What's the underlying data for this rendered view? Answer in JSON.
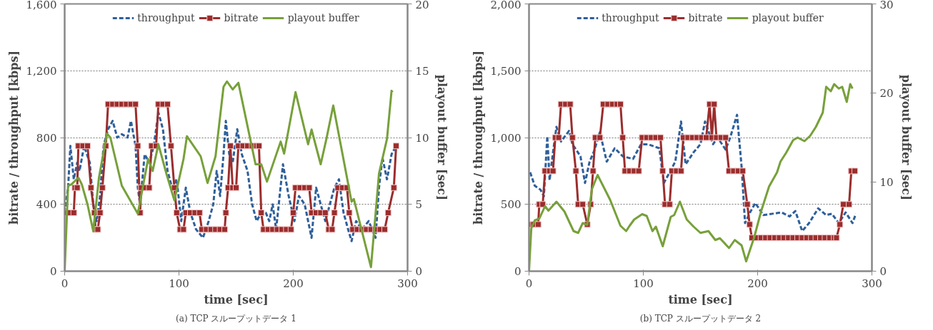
{
  "chart_data": [
    {
      "type": "line",
      "xlabel": "time [sec]",
      "ylabel": "bitrate / throughput [kbps]",
      "y2label": "playout buffer [sec]",
      "annotations": [
        "(a) TCP スループットデータ 1"
      ],
      "xlim": [
        0,
        300
      ],
      "xticks": [
        0,
        100,
        200,
        300
      ],
      "ylim": [
        0,
        1600
      ],
      "yticks": [
        0,
        400,
        800,
        {
          "value": 1200,
          "label": "1,200"
        },
        {
          "value": 1600,
          "label": "1,600"
        }
      ],
      "y2lim": [
        0,
        20
      ],
      "y2ticks": [
        0,
        5,
        10,
        15,
        20
      ],
      "grid": "y",
      "legend": "top",
      "series": [
        {
          "name": "throughput",
          "color": "#2e5f9a",
          "line_style": "dashed",
          "marker": "none",
          "x": [
            0,
            3,
            5,
            8,
            11,
            13,
            17,
            22,
            25,
            28,
            31,
            34,
            38,
            42,
            46,
            50,
            55,
            58,
            62,
            64,
            66,
            70,
            74,
            78,
            82,
            86,
            90,
            94,
            98,
            102,
            106,
            110,
            115,
            121,
            126,
            130,
            133,
            136,
            139,
            141,
            144,
            147,
            151,
            155,
            160,
            164,
            168,
            172,
            176,
            179,
            182,
            185,
            191,
            196,
            201,
            205,
            210,
            216,
            220,
            224,
            228,
            232,
            236,
            240,
            244,
            248,
            251,
            255,
            260,
            266,
            272,
            275,
            278,
            282,
            286,
            290
          ],
          "values": [
            350,
            500,
            750,
            550,
            650,
            600,
            750,
            650,
            400,
            300,
            450,
            750,
            850,
            900,
            800,
            820,
            800,
            900,
            750,
            500,
            400,
            700,
            650,
            750,
            950,
            850,
            600,
            500,
            550,
            300,
            500,
            350,
            250,
            200,
            300,
            400,
            600,
            450,
            700,
            900,
            700,
            650,
            850,
            700,
            600,
            400,
            300,
            350,
            350,
            300,
            400,
            250,
            640,
            450,
            300,
            450,
            400,
            200,
            500,
            400,
            300,
            400,
            500,
            550,
            350,
            250,
            180,
            300,
            250,
            300,
            200,
            500,
            680,
            550,
            700,
            750
          ]
        },
        {
          "name": "bitrate",
          "color": "#9b2d2d",
          "line_style": "solid",
          "marker": "square",
          "x": [
            0,
            4,
            8,
            9,
            11,
            12,
            16,
            20,
            23,
            26,
            27,
            29,
            31,
            33,
            36,
            38,
            42,
            46,
            50,
            54,
            58,
            62,
            64,
            66,
            67,
            71,
            74,
            76,
            80,
            82,
            86,
            90,
            93,
            96,
            98,
            101,
            104,
            106,
            110,
            114,
            118,
            120,
            124,
            128,
            132,
            136,
            140,
            141,
            143,
            145,
            147,
            150,
            152,
            156,
            160,
            164,
            168,
            170,
            172,
            174,
            178,
            182,
            186,
            190,
            194,
            198,
            200,
            202,
            206,
            210,
            214,
            216,
            220,
            224,
            228,
            231,
            234,
            236,
            239,
            243,
            247,
            249,
            252,
            256,
            260,
            264,
            268,
            272,
            276,
            280,
            283,
            288,
            290
          ],
          "values": [
            350,
            350,
            350,
            500,
            500,
            750,
            750,
            750,
            500,
            350,
            250,
            250,
            350,
            500,
            750,
            1000,
            1000,
            1000,
            1000,
            1000,
            1000,
            1000,
            750,
            350,
            500,
            500,
            500,
            750,
            750,
            1000,
            1000,
            1000,
            750,
            500,
            350,
            250,
            250,
            350,
            350,
            350,
            350,
            250,
            250,
            250,
            250,
            250,
            250,
            350,
            500,
            750,
            500,
            500,
            750,
            750,
            750,
            750,
            750,
            750,
            350,
            250,
            250,
            250,
            250,
            250,
            250,
            250,
            350,
            500,
            500,
            500,
            500,
            350,
            350,
            350,
            350,
            250,
            250,
            350,
            500,
            500,
            500,
            350,
            250,
            250,
            250,
            250,
            250,
            250,
            250,
            250,
            350,
            500,
            750
          ]
        },
        {
          "name": "playout buffer",
          "color": "#77a03a",
          "line_style": "solid",
          "marker": "none",
          "axis": "y2",
          "x": [
            0,
            3,
            6,
            12,
            15,
            20,
            25,
            30,
            37,
            40,
            50,
            64,
            73,
            77,
            82,
            89,
            96,
            104,
            107,
            119,
            125,
            132,
            139,
            142,
            147,
            152,
            167,
            172,
            177,
            189,
            192,
            202,
            213,
            216,
            224,
            229,
            235,
            251,
            253,
            268,
            275,
            282,
            286,
            287
          ],
          "values": [
            0,
            6.4,
            6.5,
            7,
            6.5,
            5,
            3,
            7,
            10.3,
            10,
            6.4,
            4.3,
            8.4,
            7.5,
            9.5,
            7.3,
            5.3,
            8.4,
            10.1,
            8.6,
            6.6,
            8.6,
            13.8,
            14.2,
            13.6,
            14.1,
            8,
            8,
            6.7,
            9.7,
            8.8,
            13.4,
            9.5,
            10.6,
            8,
            9.9,
            12.4,
            5.2,
            5.4,
            0.3,
            7.3,
            9.9,
            13.5,
            13.4
          ]
        }
      ]
    },
    {
      "type": "line",
      "xlabel": "time [sec]",
      "ylabel": "bitrate / throughput [kbps]",
      "y2label": "playout buffer [sec]",
      "annotations": [
        "(b) TCP スループットデータ 2"
      ],
      "xlim": [
        0,
        300
      ],
      "xticks": [
        0,
        100,
        200,
        300
      ],
      "ylim": [
        0,
        2000
      ],
      "yticks": [
        0,
        500,
        {
          "value": 1000,
          "label": "1,000"
        },
        {
          "value": 1500,
          "label": "1,500"
        },
        {
          "value": 2000,
          "label": "2,000"
        }
      ],
      "y2lim": [
        0,
        30
      ],
      "y2ticks": [
        0,
        10,
        20,
        30
      ],
      "grid": "y",
      "legend": "top",
      "series": [
        {
          "name": "throughput",
          "color": "#2e5f9a",
          "line_style": "dashed",
          "marker": "none",
          "x": [
            1,
            5,
            10,
            13,
            16,
            18,
            21,
            24,
            28,
            35,
            38,
            45,
            49,
            53,
            57,
            62,
            68,
            75,
            82,
            91,
            98,
            104,
            114,
            118,
            123,
            128,
            133,
            137,
            144,
            150,
            154,
            161,
            165,
            172,
            176,
            182,
            186,
            189,
            194,
            198,
            205,
            213,
            221,
            228,
            233,
            239,
            245,
            253,
            260,
            265,
            271,
            277,
            283,
            286
          ],
          "values": [
            740,
            640,
            610,
            560,
            1010,
            680,
            890,
            1080,
            970,
            1050,
            950,
            860,
            660,
            820,
            900,
            1040,
            820,
            920,
            860,
            840,
            950,
            950,
            920,
            660,
            740,
            820,
            1120,
            800,
            890,
            950,
            1120,
            950,
            1000,
            910,
            1000,
            1170,
            780,
            360,
            450,
            510,
            420,
            430,
            440,
            410,
            450,
            300,
            360,
            470,
            420,
            430,
            360,
            440,
            360,
            430
          ]
        },
        {
          "name": "bitrate",
          "color": "#9b2d2d",
          "line_style": "solid",
          "marker": "square",
          "x": [
            0,
            4,
            8,
            9,
            12,
            14,
            18,
            21,
            23,
            26,
            28,
            32,
            36,
            38,
            41,
            43,
            47,
            51,
            54,
            56,
            58,
            62,
            65,
            69,
            73,
            77,
            80,
            82,
            84,
            88,
            92,
            96,
            99,
            103,
            107,
            111,
            115,
            117,
            119,
            123,
            125,
            129,
            133,
            135,
            139,
            143,
            147,
            151,
            155,
            158,
            160,
            162,
            164,
            168,
            172,
            175,
            179,
            183,
            187,
            191,
            193,
            195,
            199,
            203,
            207,
            211,
            215,
            219,
            223,
            227,
            231,
            235,
            239,
            243,
            247,
            251,
            255,
            259,
            263,
            267,
            269,
            272,
            275,
            280,
            282,
            285
          ],
          "values": [
            350,
            350,
            350,
            500,
            500,
            750,
            750,
            750,
            1000,
            1000,
            1250,
            1250,
            1250,
            1000,
            750,
            500,
            500,
            350,
            500,
            750,
            1000,
            1000,
            1250,
            1250,
            1250,
            1250,
            1250,
            1000,
            750,
            750,
            750,
            750,
            1000,
            1000,
            1000,
            1000,
            1000,
            750,
            500,
            500,
            750,
            750,
            750,
            1000,
            1000,
            1000,
            1000,
            1000,
            1000,
            1250,
            1000,
            1250,
            1000,
            1000,
            1000,
            750,
            750,
            750,
            750,
            500,
            350,
            250,
            250,
            250,
            250,
            250,
            250,
            250,
            250,
            250,
            250,
            250,
            250,
            250,
            250,
            250,
            250,
            250,
            250,
            250,
            250,
            350,
            500,
            500,
            750,
            750
          ]
        },
        {
          "name": "playout buffer",
          "color": "#77a03a",
          "line_style": "solid",
          "marker": "none",
          "axis": "y2",
          "x": [
            0,
            2,
            5,
            9,
            14,
            17,
            24,
            31,
            39,
            43,
            47,
            51,
            55,
            60,
            71,
            80,
            85,
            88,
            92,
            99,
            103,
            108,
            111,
            117,
            124,
            127,
            132,
            138,
            144,
            150,
            157,
            163,
            167,
            175,
            180,
            186,
            190,
            197,
            203,
            210,
            217,
            220,
            225,
            231,
            235,
            241,
            246,
            251,
            257,
            260,
            264,
            267,
            271,
            274,
            278,
            281,
            283
          ],
          "values": [
            0,
            4.8,
            5.7,
            5.9,
            7.3,
            6.8,
            7.8,
            6.7,
            4.5,
            4.3,
            5.4,
            5.2,
            9.2,
            10.8,
            8,
            5.1,
            4.5,
            5.1,
            5.8,
            6.4,
            6.2,
            4.5,
            5,
            2.8,
            6.1,
            6.3,
            7.8,
            5.8,
            5,
            4.3,
            4.5,
            3.5,
            3.7,
            2.6,
            3.5,
            2.9,
            1.1,
            3.8,
            6.7,
            9.5,
            11.1,
            12.3,
            13.3,
            14.7,
            15,
            14.6,
            15.2,
            16.2,
            17.8,
            20.7,
            20.2,
            21,
            20.5,
            20.7,
            19,
            21,
            20.5
          ]
        }
      ]
    }
  ]
}
